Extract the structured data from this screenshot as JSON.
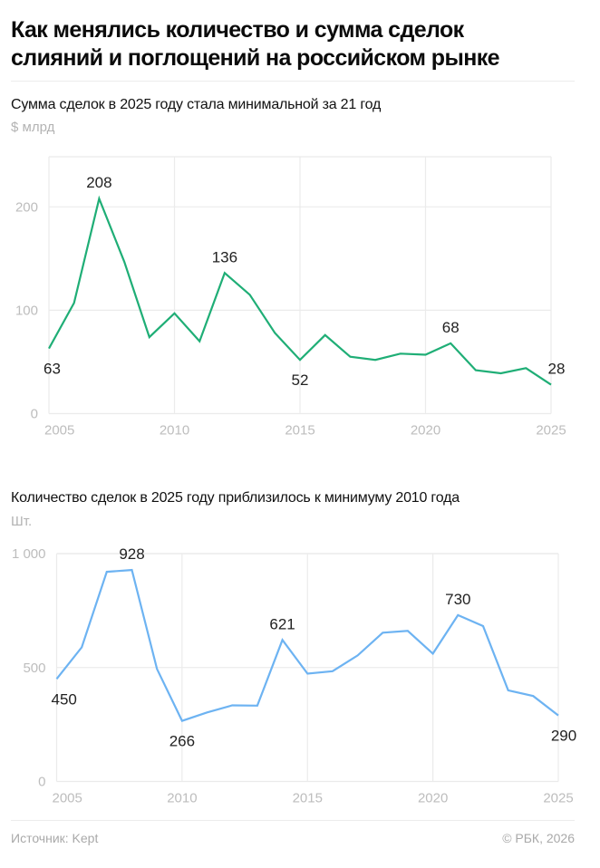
{
  "header": {
    "title_line1": "Как менялись количество и сумма сделок",
    "title_line2": "слияний и поглощений на российском рынке"
  },
  "footer": {
    "source": "Источник: Kept",
    "copyright": "© РБК, 2026"
  },
  "colors": {
    "value_line": "#1fae76",
    "count_line": "#6db3f2",
    "grid": "#ebebeb",
    "axis_text": "#bdbdbd"
  },
  "chart_data": [
    {
      "type": "line",
      "title": "Сумма сделок в 2025 году стала минимальной за 21 год",
      "ylabel": "$ млрд",
      "xlabel": "",
      "x": [
        2005,
        2006,
        2007,
        2008,
        2009,
        2010,
        2011,
        2012,
        2013,
        2014,
        2015,
        2016,
        2017,
        2018,
        2019,
        2020,
        2021,
        2022,
        2023,
        2024,
        2025
      ],
      "series": [
        {
          "name": "Сумма сделок",
          "values": [
            63,
            107,
            208,
            147,
            74,
            97,
            70,
            136,
            115,
            78,
            52,
            76,
            55,
            52,
            58,
            57,
            68,
            42,
            39,
            44,
            28
          ]
        }
      ],
      "yticks": [
        0,
        100,
        200
      ],
      "ytick_labels": [
        "0",
        "100",
        "200"
      ],
      "xticks": [
        2005,
        2010,
        2015,
        2020,
        2025
      ],
      "xtick_labels": [
        "2005",
        "2010",
        "2015",
        "2020",
        "2025"
      ],
      "ylim": [
        0,
        250
      ],
      "xlim": [
        2005,
        2025
      ],
      "grid": true,
      "annotations": [
        {
          "x": 2005,
          "value": 63,
          "text": "63",
          "pos": "below"
        },
        {
          "x": 2007,
          "value": 208,
          "text": "208",
          "pos": "above"
        },
        {
          "x": 2012,
          "value": 136,
          "text": "136",
          "pos": "above"
        },
        {
          "x": 2015,
          "value": 52,
          "text": "52",
          "pos": "below"
        },
        {
          "x": 2021,
          "value": 68,
          "text": "68",
          "pos": "above"
        },
        {
          "x": 2025,
          "value": 28,
          "text": "28",
          "pos": "above"
        }
      ]
    },
    {
      "type": "line",
      "title": "Количество сделок в 2025 году приблизилось к минимуму 2010 года",
      "ylabel": "Шт.",
      "xlabel": "",
      "x": [
        2005,
        2006,
        2007,
        2008,
        2009,
        2010,
        2011,
        2012,
        2013,
        2014,
        2015,
        2016,
        2017,
        2018,
        2019,
        2020,
        2021,
        2022,
        2023,
        2024,
        2025
      ],
      "series": [
        {
          "name": "Количество сделок",
          "values": [
            450,
            589,
            920,
            928,
            494,
            266,
            303,
            334,
            333,
            621,
            473,
            484,
            553,
            653,
            661,
            561,
            730,
            682,
            400,
            375,
            290
          ]
        }
      ],
      "yticks": [
        0,
        500,
        1000
      ],
      "ytick_labels": [
        "0",
        "500",
        "1 000"
      ],
      "xticks": [
        2005,
        2010,
        2015,
        2020,
        2025
      ],
      "xtick_labels": [
        "2005",
        "2010",
        "2015",
        "2020",
        "2025"
      ],
      "ylim": [
        0,
        1000
      ],
      "xlim": [
        2005,
        2025
      ],
      "grid": true,
      "annotations": [
        {
          "x": 2005,
          "value": 450,
          "text": "450",
          "pos": "below"
        },
        {
          "x": 2008,
          "value": 928,
          "text": "928",
          "pos": "above"
        },
        {
          "x": 2010,
          "value": 266,
          "text": "266",
          "pos": "below"
        },
        {
          "x": 2014,
          "value": 621,
          "text": "621",
          "pos": "above"
        },
        {
          "x": 2021,
          "value": 730,
          "text": "730",
          "pos": "above"
        },
        {
          "x": 2025,
          "value": 290,
          "text": "290",
          "pos": "below"
        }
      ]
    }
  ]
}
